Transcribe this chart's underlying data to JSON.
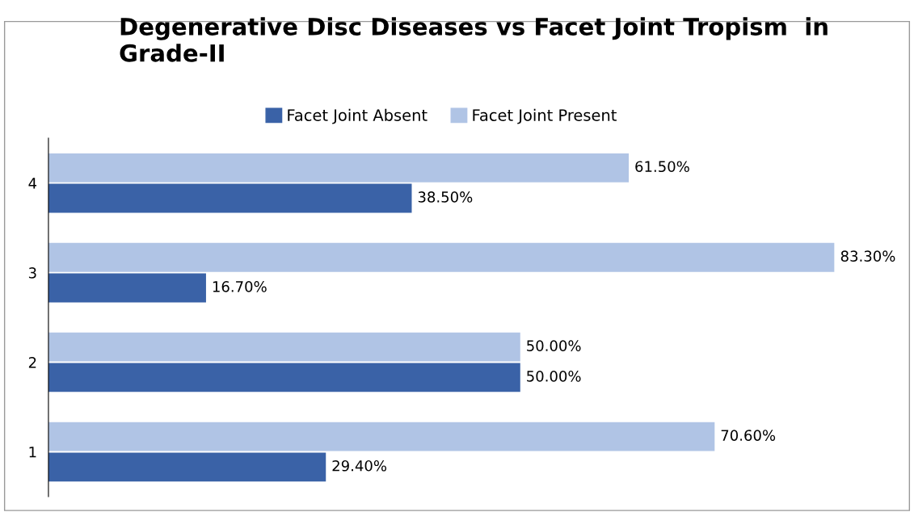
{
  "chart_data": {
    "type": "bar",
    "orientation": "horizontal",
    "title": "Degenerative Disc Diseases vs Facet Joint Tropism  in Grade-II",
    "categories": [
      "4",
      "3",
      "2",
      "1"
    ],
    "series": [
      {
        "name": "Facet Joint Absent",
        "color": "#3a62a7",
        "values": [
          38.5,
          16.7,
          50.0,
          29.4
        ],
        "value_labels": [
          "38.50%",
          "16.70%",
          "50.00%",
          "29.40%"
        ]
      },
      {
        "name": "Facet Joint Present",
        "color": "#b0c4e5",
        "values": [
          61.5,
          83.3,
          50.0,
          70.6
        ],
        "value_labels": [
          "61.50%",
          "83.30%",
          "50.00%",
          "70.60%"
        ]
      }
    ],
    "legend": "top",
    "grid": false
  }
}
